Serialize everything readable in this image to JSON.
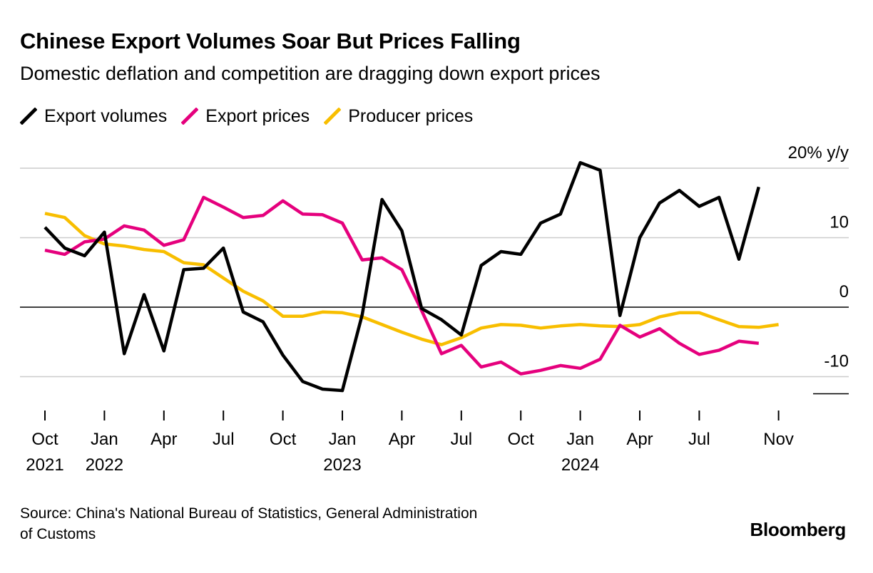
{
  "chart_data": {
    "type": "line",
    "title": "Chinese Export Volumes Soar But Prices Falling",
    "subtitle": "Domestic deflation and competition are dragging down export prices",
    "ylabel": "20% y/y",
    "ylim": [
      -13,
      22
    ],
    "yticks": [
      {
        "value": 20,
        "label": "20% y/y"
      },
      {
        "value": 10,
        "label": "10"
      },
      {
        "value": 0,
        "label": "0"
      },
      {
        "value": -10,
        "label": "-10"
      }
    ],
    "x_start": "2021-10",
    "xticks": [
      {
        "index": 0,
        "month": "Oct",
        "year": "2021"
      },
      {
        "index": 3,
        "month": "Jan",
        "year": "2022"
      },
      {
        "index": 6,
        "month": "Apr",
        "year": ""
      },
      {
        "index": 9,
        "month": "Jul",
        "year": ""
      },
      {
        "index": 12,
        "month": "Oct",
        "year": ""
      },
      {
        "index": 15,
        "month": "Jan",
        "year": "2023"
      },
      {
        "index": 18,
        "month": "Apr",
        "year": ""
      },
      {
        "index": 21,
        "month": "Jul",
        "year": ""
      },
      {
        "index": 24,
        "month": "Oct",
        "year": ""
      },
      {
        "index": 27,
        "month": "Jan",
        "year": "2024"
      },
      {
        "index": 30,
        "month": "Apr",
        "year": ""
      },
      {
        "index": 33,
        "month": "Jul",
        "year": ""
      },
      {
        "index": 37,
        "month": "Nov",
        "year": ""
      }
    ],
    "series": [
      {
        "name": "Export volumes",
        "color": "#000000",
        "values": [
          11.5,
          8.5,
          7.4,
          10.8,
          -6.7,
          1.8,
          -6.3,
          5.4,
          5.6,
          8.5,
          -0.7,
          -2.1,
          -6.9,
          -10.7,
          -11.8,
          -12.0,
          -1.1,
          15.5,
          11.0,
          -0.2,
          -1.8,
          -4.0,
          6.0,
          8.0,
          7.6,
          12.1,
          13.4,
          20.8,
          19.7,
          -1.2,
          10.0,
          15.0,
          16.8,
          14.5,
          15.8,
          6.9,
          17.3
        ]
      },
      {
        "name": "Export prices",
        "color": "#E5007D",
        "values": [
          8.2,
          7.6,
          9.4,
          9.8,
          11.7,
          11.1,
          8.9,
          9.7,
          15.8,
          14.4,
          12.9,
          13.2,
          15.3,
          13.4,
          13.3,
          12.1,
          6.8,
          7.1,
          5.4,
          -0.5,
          -6.7,
          -5.5,
          -8.6,
          -7.9,
          -9.6,
          -9.1,
          -8.4,
          -8.8,
          -7.5,
          -2.6,
          -4.3,
          -3.1,
          -5.2,
          -6.8,
          -6.2,
          -4.9,
          -5.2
        ]
      },
      {
        "name": "Producer prices",
        "color": "#F8BE00",
        "values": [
          13.5,
          12.9,
          10.3,
          9.1,
          8.8,
          8.3,
          8.0,
          6.4,
          6.1,
          4.2,
          2.3,
          0.9,
          -1.3,
          -1.3,
          -0.7,
          -0.8,
          -1.4,
          -2.5,
          -3.6,
          -4.6,
          -5.4,
          -4.4,
          -3.0,
          -2.5,
          -2.6,
          -3.0,
          -2.7,
          -2.5,
          -2.7,
          -2.8,
          -2.5,
          -1.4,
          -0.8,
          -0.8,
          -1.8,
          -2.8,
          -2.9,
          -2.5
        ]
      }
    ],
    "legend": {
      "position": "top-left"
    }
  },
  "source": {
    "line1": "Source: China's National Bureau of Statistics, General Administration",
    "line2": "of Customs"
  },
  "brand": "Bloomberg"
}
